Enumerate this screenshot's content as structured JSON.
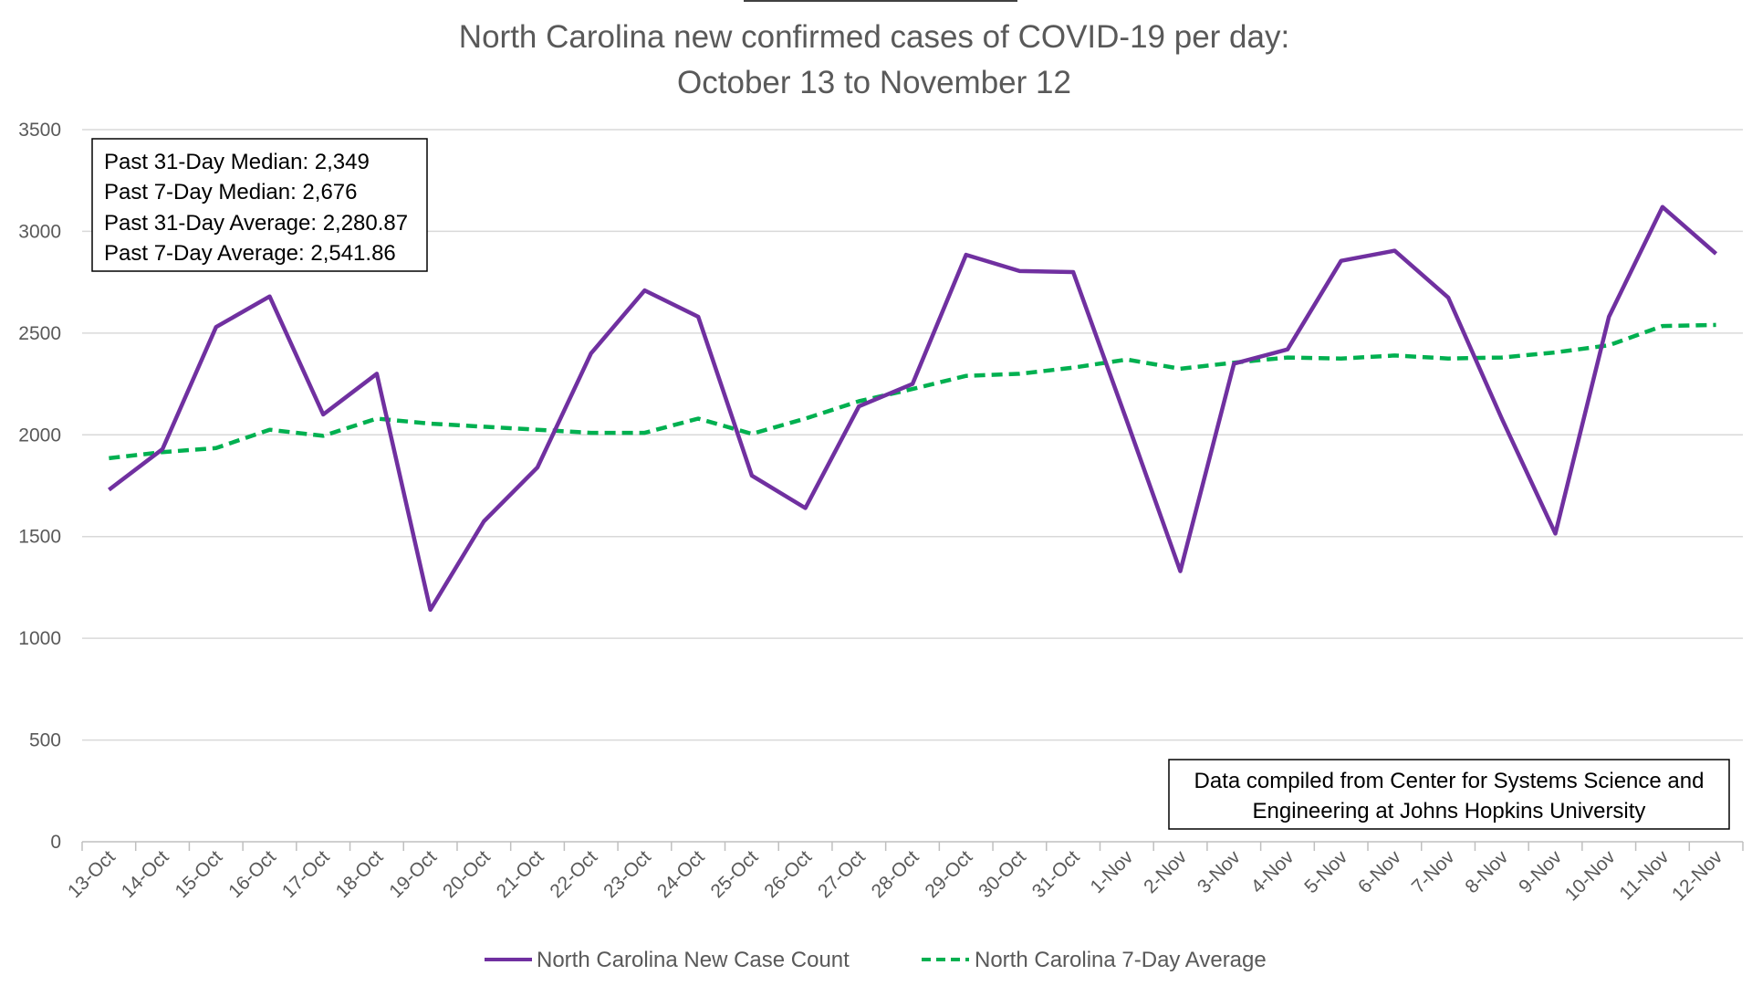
{
  "chart_data": {
    "type": "line",
    "title": "North Carolina new confirmed cases of COVID-19 per day:",
    "subtitle": "October 13 to November 12",
    "categories": [
      "13-Oct",
      "14-Oct",
      "15-Oct",
      "16-Oct",
      "17-Oct",
      "18-Oct",
      "19-Oct",
      "20-Oct",
      "21-Oct",
      "22-Oct",
      "23-Oct",
      "24-Oct",
      "25-Oct",
      "26-Oct",
      "27-Oct",
      "28-Oct",
      "29-Oct",
      "30-Oct",
      "31-Oct",
      "1-Nov",
      "2-Nov",
      "3-Nov",
      "4-Nov",
      "5-Nov",
      "6-Nov",
      "7-Nov",
      "8-Nov",
      "9-Nov",
      "10-Nov",
      "11-Nov",
      "12-Nov"
    ],
    "series": [
      {
        "name": "North Carolina New Case Count",
        "color": "#7030a0",
        "style": "solid",
        "values": [
          1730,
          1930,
          2530,
          2680,
          2100,
          2300,
          1140,
          1575,
          1840,
          2400,
          2710,
          2580,
          1800,
          1640,
          2140,
          2250,
          2885,
          2805,
          2800,
          2070,
          1330,
          2350,
          2420,
          2855,
          2905,
          2675,
          2080,
          1515,
          2580,
          3120,
          2890
        ]
      },
      {
        "name": "North Carolina 7-Day Average",
        "color": "#00b050",
        "style": "dashed",
        "values": [
          1885,
          1915,
          1935,
          2025,
          1995,
          2080,
          2055,
          2040,
          2025,
          2010,
          2010,
          2080,
          2005,
          2080,
          2165,
          2225,
          2290,
          2300,
          2330,
          2370,
          2325,
          2355,
          2380,
          2375,
          2390,
          2375,
          2380,
          2405,
          2440,
          2535,
          2540
        ]
      }
    ],
    "yticks": [
      0,
      500,
      1000,
      1500,
      2000,
      2500,
      3000,
      3500
    ],
    "ylim": [
      0,
      3500
    ],
    "grid": true,
    "legend_position": "bottom",
    "stats_box": [
      "Past 31-Day Median: 2,349",
      "Past 7-Day Median: 2,676",
      "Past 31-Day Average: 2,280.87",
      "Past 7-Day Average: 2,541.86"
    ],
    "source_note": [
      "Data compiled from Center for Systems Science and",
      "Engineering at Johns Hopkins University"
    ]
  }
}
